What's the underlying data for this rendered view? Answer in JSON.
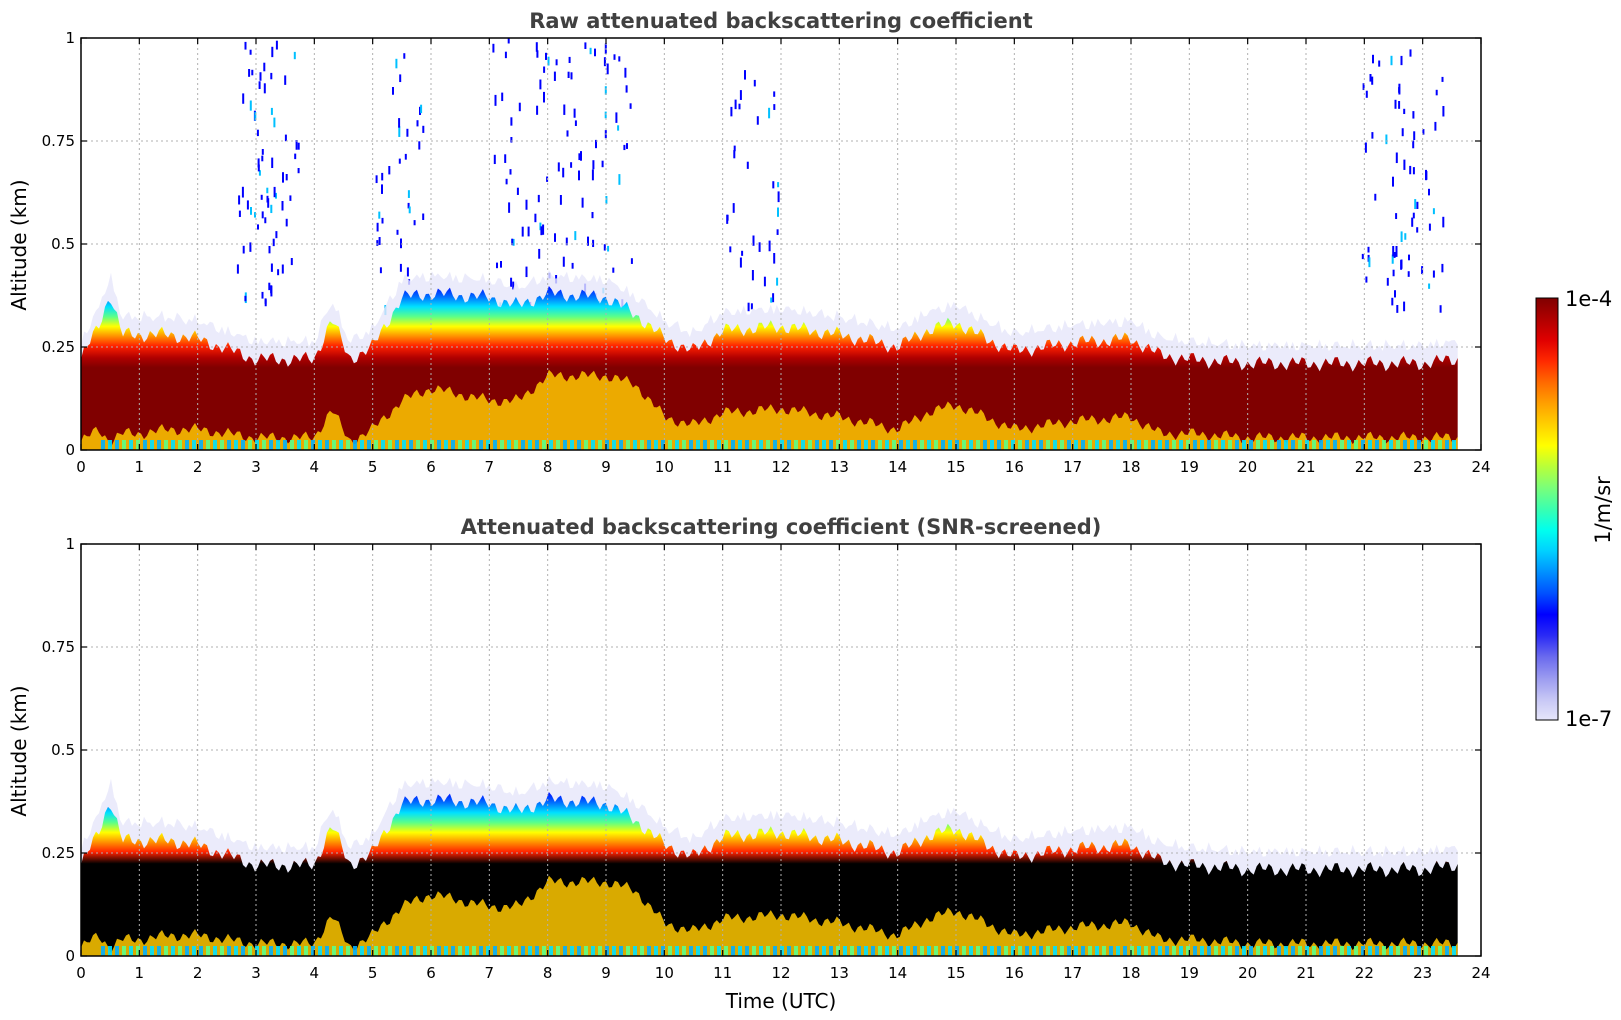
{
  "chart_data": [
    {
      "type": "heatmap",
      "title": "Raw attenuated backscattering coefficient",
      "xlabel": "",
      "ylabel": "Altitude (km)",
      "xlim": [
        0,
        24
      ],
      "ylim": [
        0,
        1
      ],
      "xticks": [
        "0",
        "1",
        "2",
        "3",
        "4",
        "5",
        "6",
        "7",
        "8",
        "9",
        "10",
        "11",
        "12",
        "13",
        "14",
        "15",
        "16",
        "17",
        "18",
        "19",
        "20",
        "21",
        "22",
        "23",
        "24"
      ],
      "yticks": [
        "0",
        "0.25",
        "0.5",
        "0.75",
        "1"
      ],
      "grid": true,
      "data_end_hour": 23.6,
      "noise_columns_hours": [
        3.1,
        3.3,
        5.5,
        7.5,
        8.2,
        9.0,
        11.5,
        22.4,
        22.9
      ],
      "layer": {
        "hours": [
          0,
          0.3,
          0.5,
          0.7,
          1,
          1.5,
          2,
          3,
          4,
          4.3,
          4.6,
          5,
          5.5,
          6,
          7,
          7.5,
          8,
          9,
          9.5,
          10,
          10.5,
          11,
          12,
          13,
          14,
          14.5,
          15,
          15.5,
          16,
          17,
          18,
          18.5,
          19,
          20,
          21,
          22,
          23,
          23.6
        ],
        "top_km": [
          0.22,
          0.3,
          0.38,
          0.28,
          0.28,
          0.28,
          0.27,
          0.22,
          0.22,
          0.32,
          0.22,
          0.25,
          0.37,
          0.38,
          0.37,
          0.35,
          0.38,
          0.37,
          0.33,
          0.27,
          0.24,
          0.29,
          0.3,
          0.28,
          0.25,
          0.29,
          0.31,
          0.27,
          0.24,
          0.26,
          0.27,
          0.23,
          0.22,
          0.21,
          0.21,
          0.21,
          0.21,
          0.22
        ],
        "base_km": [
          0.02,
          0.05,
          0.02,
          0.04,
          0.04,
          0.05,
          0.05,
          0.03,
          0.03,
          0.1,
          0.02,
          0.05,
          0.12,
          0.15,
          0.12,
          0.12,
          0.18,
          0.18,
          0.16,
          0.08,
          0.06,
          0.09,
          0.1,
          0.08,
          0.05,
          0.09,
          0.11,
          0.08,
          0.05,
          0.07,
          0.08,
          0.04,
          0.04,
          0.03,
          0.03,
          0.03,
          0.03,
          0.03
        ]
      }
    },
    {
      "type": "heatmap",
      "title": "Attenuated backscattering coefficient (SNR-screened)",
      "xlabel": "Time (UTC)",
      "ylabel": "Altitude (km)",
      "xlim": [
        0,
        24
      ],
      "ylim": [
        0,
        1
      ],
      "xticks": [
        "0",
        "1",
        "2",
        "3",
        "4",
        "5",
        "6",
        "7",
        "8",
        "9",
        "10",
        "11",
        "12",
        "13",
        "14",
        "15",
        "16",
        "17",
        "18",
        "19",
        "20",
        "21",
        "22",
        "23",
        "24"
      ],
      "yticks": [
        "0",
        "0.25",
        "0.5",
        "0.75",
        "1"
      ],
      "grid": true,
      "data_end_hour": 23.6,
      "saturated_color": "#000000",
      "layer": {
        "hours": [
          0,
          0.3,
          0.5,
          0.7,
          1,
          1.5,
          2,
          3,
          4,
          4.3,
          4.6,
          5,
          5.5,
          6,
          7,
          7.5,
          8,
          9,
          9.5,
          10,
          10.5,
          11,
          12,
          13,
          14,
          14.5,
          15,
          15.5,
          16,
          17,
          18,
          18.5,
          19,
          20,
          21,
          22,
          23,
          23.6
        ],
        "top_km": [
          0.22,
          0.3,
          0.38,
          0.28,
          0.28,
          0.28,
          0.27,
          0.22,
          0.22,
          0.32,
          0.22,
          0.25,
          0.37,
          0.38,
          0.37,
          0.35,
          0.38,
          0.37,
          0.33,
          0.27,
          0.24,
          0.29,
          0.3,
          0.28,
          0.25,
          0.29,
          0.31,
          0.27,
          0.24,
          0.26,
          0.27,
          0.23,
          0.22,
          0.21,
          0.21,
          0.21,
          0.21,
          0.22
        ],
        "base_km": [
          0.02,
          0.05,
          0.02,
          0.04,
          0.04,
          0.05,
          0.05,
          0.03,
          0.03,
          0.1,
          0.02,
          0.05,
          0.12,
          0.15,
          0.12,
          0.12,
          0.18,
          0.18,
          0.16,
          0.08,
          0.06,
          0.09,
          0.1,
          0.08,
          0.05,
          0.09,
          0.11,
          0.08,
          0.05,
          0.07,
          0.08,
          0.04,
          0.04,
          0.03,
          0.03,
          0.03,
          0.03,
          0.03
        ]
      }
    }
  ],
  "colorbar": {
    "label": "1/m/sr",
    "max_label": "1e-4",
    "min_label": "1e-7",
    "scale": "log",
    "colors": [
      "#e6e6fa",
      "#c6c6f5",
      "#9a9af0",
      "#6a6aee",
      "#2a2af5",
      "#0000ff",
      "#0050ff",
      "#0090ff",
      "#00d0ff",
      "#00ffee",
      "#3affb0",
      "#7aff7a",
      "#b8ff3a",
      "#ffff00",
      "#ffd000",
      "#ffa000",
      "#ff6a00",
      "#ff2a00",
      "#e00000",
      "#b00000",
      "#800000"
    ]
  }
}
